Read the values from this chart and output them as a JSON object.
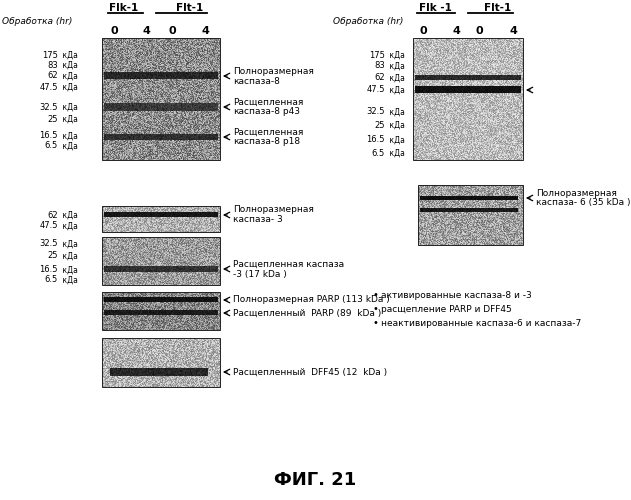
{
  "title": "ФИГ. 21",
  "bg_color": "#ffffff",
  "left_panel": {
    "header_left": "Flk-1",
    "header_right": "Flt-1",
    "treatment_label": "Обработка (hr)",
    "lane_labels": [
      "0",
      "4",
      "0",
      "4"
    ],
    "blot1_kda": [
      [
        "175",
        445
      ],
      [
        "83",
        435
      ],
      [
        "62",
        424
      ],
      [
        "47.5",
        413
      ],
      [
        "32.5",
        393
      ],
      [
        "25",
        381
      ],
      [
        "16.5",
        364
      ],
      [
        "6.5",
        354
      ]
    ],
    "blot2_kda": [
      [
        "62",
        285
      ],
      [
        "47.5",
        274
      ],
      [
        "32.5",
        256
      ],
      [
        "25",
        244
      ],
      [
        "16.5",
        230
      ],
      [
        "6.5",
        220
      ]
    ],
    "ann1_text1": "Полноразмерная",
    "ann1_text2": "каспаза-8",
    "ann2_text1": "Расщепленная",
    "ann2_text2": "каспаза",
    "ann2_text3": "-8 р43",
    "ann3_text1": "Расщепленная",
    "ann3_text2": "каспаза",
    "ann3_text3": "-8 р18",
    "ann4_text1": "Полноразмерная",
    "ann4_text2": "каспаза- 3",
    "ann5_text1": "Расщепленная каспаза",
    "ann5_text2": "-3 (17 kDa )",
    "ann6_text": "Полноразмерная PARP (113 kDa )",
    "ann7_text": "Расщепленный  PARP (89  kDa )",
    "ann8_text": "Расщепленный  DFF45 (12  kDa )"
  },
  "right_panel": {
    "header_left": "Flk -1",
    "header_right": "Flt-1",
    "treatment_label": "Обработка (hr)",
    "lane_labels": [
      "0",
      "4",
      "0",
      "4"
    ],
    "blot1_kda": [
      [
        "175",
        445
      ],
      [
        "83",
        434
      ],
      [
        "62",
        422
      ],
      [
        "47.5",
        410
      ],
      [
        "32.5",
        388
      ],
      [
        "25",
        375
      ],
      [
        "16.5",
        360
      ],
      [
        "6.5",
        347
      ]
    ],
    "ann_right1": "←",
    "ann_right2_text1": "Полноразмерная",
    "ann_right2_text2": "каспаза- 6 (35 kDa )",
    "bullet_points": [
      "активированные каспаза-8 и -3",
      "расщепление PARP и DFF45",
      "неактивированные каспаза-6 и каспаза-7"
    ]
  }
}
